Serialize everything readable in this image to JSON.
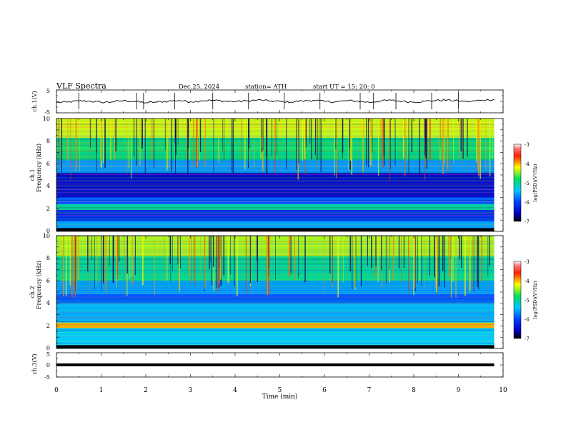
{
  "header": {
    "title": "VLF  Spectra",
    "date": "Dec.25, 2024",
    "station": "station= ATH",
    "start_ut": "start  UT  =    15: 20: 0"
  },
  "chart_data": [
    {
      "type": "line",
      "name": "ch1-waveform",
      "ylabel": "ch.1(V)",
      "xlim": [
        0,
        10
      ],
      "ylim": [
        -5,
        5
      ],
      "yticks": [
        "5",
        "-5"
      ],
      "data_end_min": 9.8,
      "x": [
        0,
        0.25,
        0.5,
        0.75,
        1,
        1.25,
        1.5,
        1.75,
        2,
        2.25,
        2.5,
        2.75,
        3,
        3.25,
        3.5,
        3.75,
        4,
        4.25,
        4.5,
        4.75,
        5,
        5.25,
        5.5,
        5.75,
        6,
        6.25,
        6.5,
        6.75,
        7,
        7.25,
        7.5,
        7.75,
        8,
        8.25,
        8.5,
        8.75,
        9,
        9.25,
        9.5,
        9.8
      ],
      "y": [
        -0.5,
        -0.3,
        0.2,
        0.1,
        -0.4,
        -0.2,
        0.3,
        0.0,
        -0.6,
        -0.3,
        0.1,
        0.4,
        -0.2,
        0.3,
        0.5,
        0.1,
        -0.1,
        0.2,
        0.6,
        0.2,
        0.0,
        -0.3,
        0.2,
        0.5,
        0.0,
        -0.2,
        0.3,
        0.1,
        -0.4,
        0.2,
        0.5,
        0.0,
        -0.3,
        0.1,
        0.4,
        0.6,
        0.2,
        -0.1,
        0.5,
        0.9
      ],
      "spikes_x": [
        0.5,
        1.8,
        1.95,
        2.65,
        3.5,
        4.3,
        5.1,
        5.9,
        6.8,
        7.1,
        7.6,
        8.4,
        9.0
      ]
    },
    {
      "type": "heatmap",
      "name": "ch1-spectrogram",
      "ylabel_top": "ch.1",
      "ylabel": "Frequency  (kHz)",
      "xlim": [
        0,
        10
      ],
      "ylim": [
        0,
        10
      ],
      "yticks": [
        "0",
        "2",
        "4",
        "6",
        "8",
        "10"
      ],
      "data_end_min": 9.8,
      "colorbar": {
        "min": -7,
        "max": -3,
        "ticks": [
          "-3",
          "-4",
          "-5",
          "-6",
          "-7"
        ],
        "label": "log(PSD)(V²/Hz)"
      },
      "bands": [
        {
          "from": 0.0,
          "to": 0.3,
          "level": -6.9
        },
        {
          "from": 0.3,
          "to": 0.9,
          "level": -5.6
        },
        {
          "from": 0.9,
          "to": 1.9,
          "level": -6.2
        },
        {
          "from": 1.9,
          "to": 2.4,
          "level": -5.0
        },
        {
          "from": 2.4,
          "to": 3.0,
          "level": -5.9
        },
        {
          "from": 3.0,
          "to": 5.2,
          "level": -6.5
        },
        {
          "from": 5.2,
          "to": 6.3,
          "level": -5.6
        },
        {
          "from": 6.3,
          "to": 8.3,
          "level": -4.9
        },
        {
          "from": 8.3,
          "to": 10.0,
          "level": -4.3
        }
      ]
    },
    {
      "type": "heatmap",
      "name": "ch2-spectrogram",
      "ylabel_top": "ch.2",
      "ylabel": "Frequency  (kHz)",
      "xlim": [
        0,
        10
      ],
      "ylim": [
        0,
        10
      ],
      "yticks": [
        "0",
        "2",
        "4",
        "6",
        "8",
        "10"
      ],
      "data_end_min": 9.8,
      "colorbar": {
        "min": -7,
        "max": -3,
        "ticks": [
          "-3",
          "-4",
          "-5",
          "-6",
          "-7"
        ],
        "label": "log(PSD)(V²/Hz)"
      },
      "bands": [
        {
          "from": 0.0,
          "to": 0.3,
          "level": -6.9
        },
        {
          "from": 0.3,
          "to": 1.8,
          "level": -5.4
        },
        {
          "from": 1.8,
          "to": 2.3,
          "level": -4.0
        },
        {
          "from": 2.3,
          "to": 4.0,
          "level": -5.5
        },
        {
          "from": 4.0,
          "to": 4.8,
          "level": -5.9
        },
        {
          "from": 4.8,
          "to": 6.0,
          "level": -5.6
        },
        {
          "from": 6.0,
          "to": 8.2,
          "level": -5.0
        },
        {
          "from": 8.2,
          "to": 10.0,
          "level": -4.4
        }
      ]
    },
    {
      "type": "line",
      "name": "ch3-waveform",
      "ylabel": "ch.3(V)",
      "xlabel": "Time  (min)",
      "xlim": [
        0,
        10
      ],
      "ylim": [
        -5,
        5
      ],
      "yticks": [
        "5",
        "0",
        "-5"
      ],
      "xticks": [
        "0",
        "1",
        "2",
        "3",
        "4",
        "5",
        "6",
        "7",
        "8",
        "9",
        "10"
      ],
      "data_end_min": 9.8,
      "x": [
        0,
        9.8
      ],
      "y": [
        0,
        0
      ]
    }
  ]
}
